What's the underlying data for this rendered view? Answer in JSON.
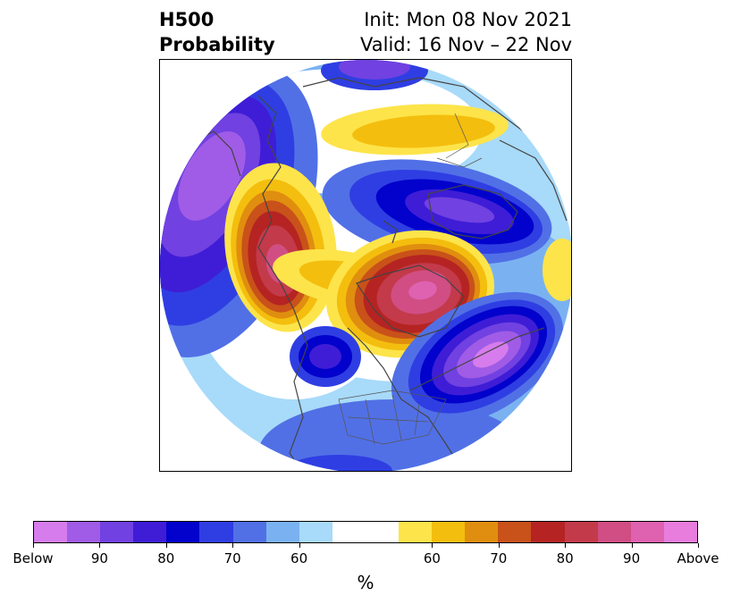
{
  "title": {
    "left_line1": "H500",
    "left_line2": "Probability",
    "right_line1": "Init: Mon 08 Nov 2021",
    "right_line2": "Valid: 16 Nov – 22 Nov"
  },
  "map": {
    "projection": "north-polar-stereographic",
    "fill": "H500 probability shading (below / above normal)"
  },
  "colorbar": {
    "colors": [
      "#d77cec",
      "#a05ce6",
      "#7141e1",
      "#3f1dd6",
      "#0202cc",
      "#2f3ee2",
      "#5170e6",
      "#7ab2f1",
      "#a8daf9",
      "#ffffff",
      "#ffffff",
      "#fde44a",
      "#f4be0e",
      "#e08e0f",
      "#c9511a",
      "#b52422",
      "#c33a4b",
      "#d14e84",
      "#de62b0",
      "#e97ddd"
    ],
    "tick_labels": [
      "Below",
      "90",
      "80",
      "70",
      "60",
      "60",
      "70",
      "80",
      "90",
      "Above"
    ],
    "unit": "%"
  }
}
